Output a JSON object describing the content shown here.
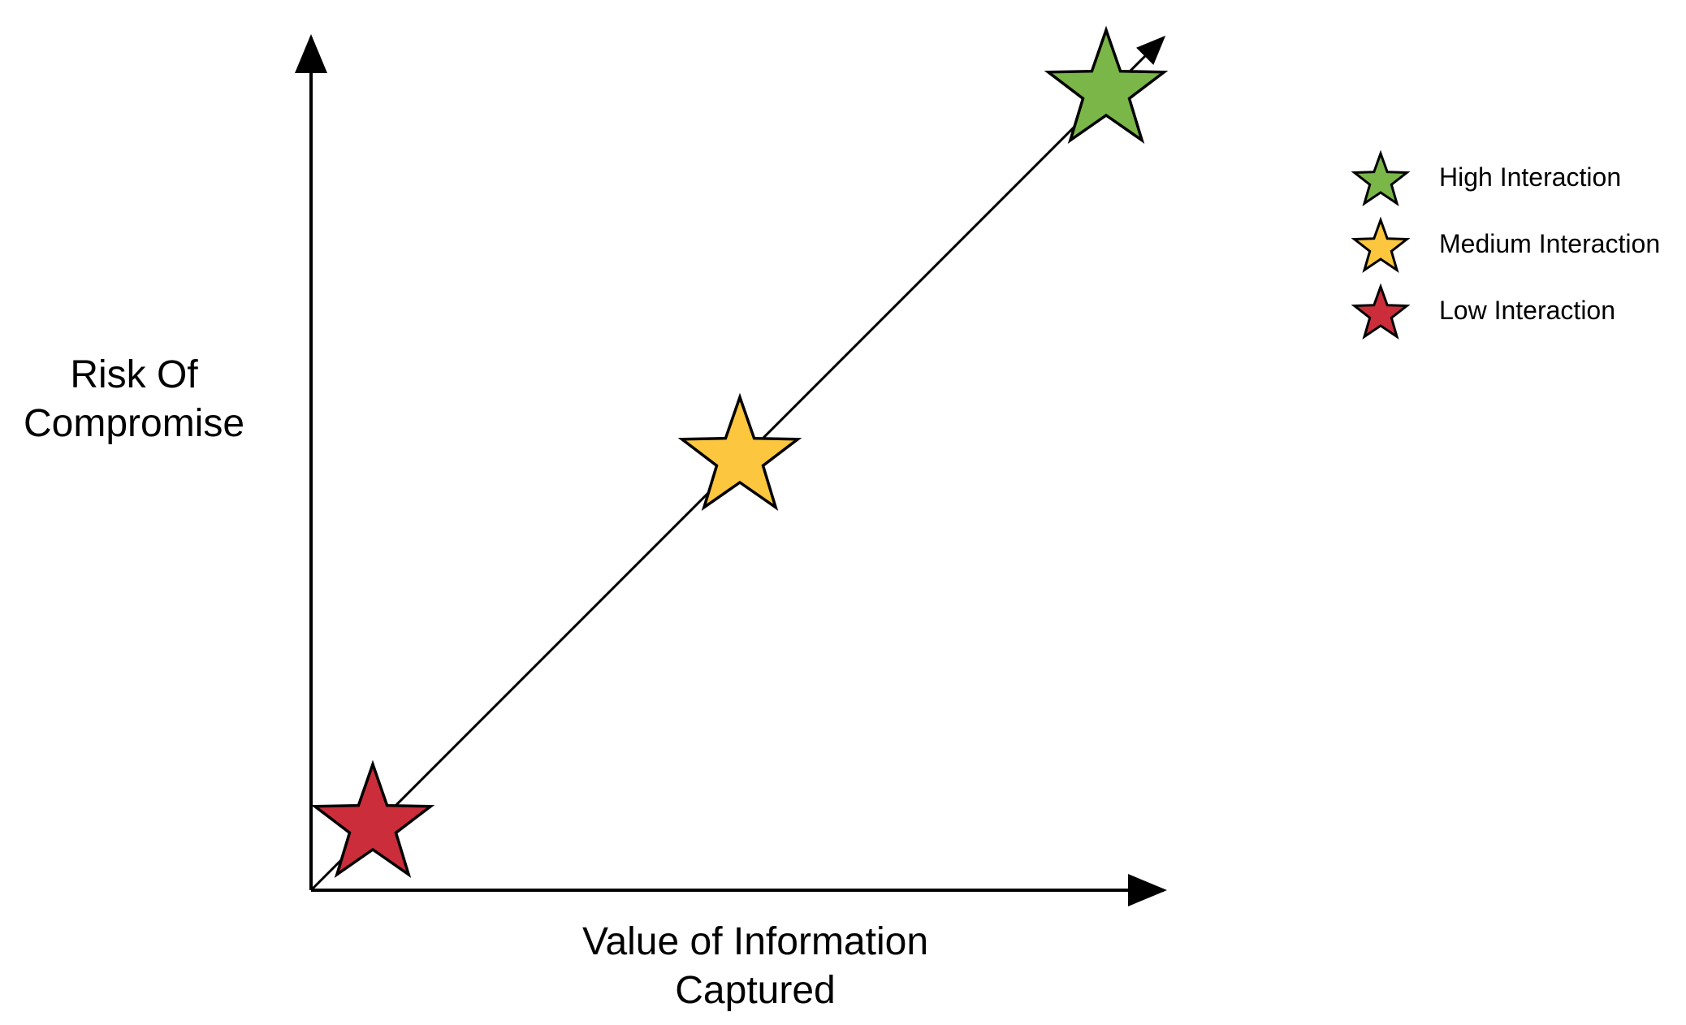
{
  "diagram": {
    "y_axis_label_lines": [
      "Risk Of",
      "Compromise"
    ],
    "x_axis_label_lines": [
      "Value of Information",
      "Captured"
    ],
    "stars": [
      {
        "name": "low",
        "color": "#cc2d3b"
      },
      {
        "name": "medium",
        "color": "#fcc63f"
      },
      {
        "name": "high",
        "color": "#7ab648"
      }
    ],
    "legend": [
      {
        "label": "High Interaction",
        "color": "#7ab648"
      },
      {
        "label": "Medium Interaction",
        "color": "#fcc63f"
      },
      {
        "label": "Low Interaction",
        "color": "#cc2d3b"
      }
    ]
  }
}
